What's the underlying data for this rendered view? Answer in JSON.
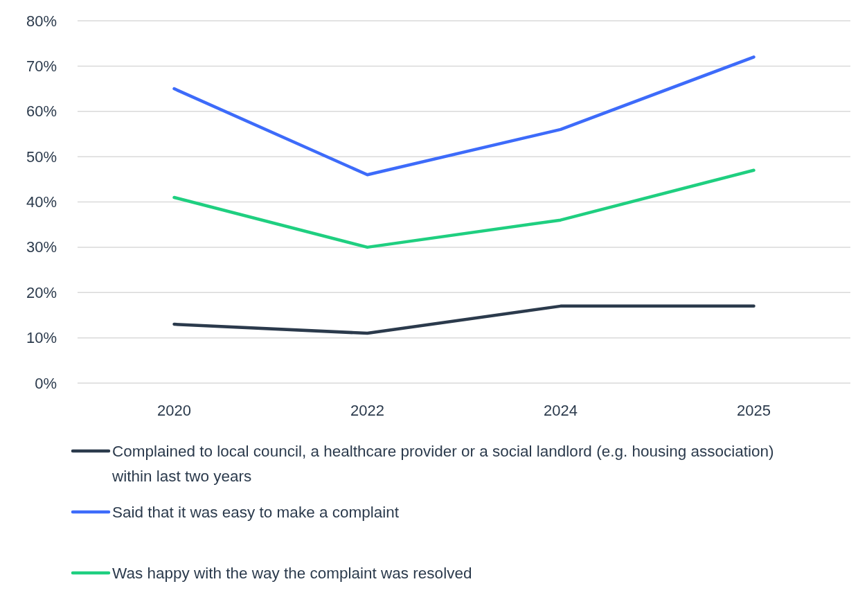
{
  "chart_data": {
    "type": "line",
    "categories": [
      "2020",
      "2022",
      "2024",
      "2025"
    ],
    "series": [
      {
        "name": "Complained to local council, a healthcare provider or a social landlord (e.g. housing association) within last two years",
        "color": "#2b3a4c",
        "values": [
          13,
          11,
          17,
          17
        ]
      },
      {
        "name": "Said that it was easy to make a complaint",
        "color": "#3d6bfa",
        "values": [
          65,
          46,
          56,
          72
        ]
      },
      {
        "name": "Was happy with the way the complaint was resolved",
        "color": "#1fcf80",
        "values": [
          41,
          30,
          36,
          47
        ]
      }
    ],
    "ylim": [
      0,
      80
    ],
    "yticks": [
      {
        "value": 0,
        "label": "0%"
      },
      {
        "value": 10,
        "label": "10%"
      },
      {
        "value": 20,
        "label": "20%"
      },
      {
        "value": 30,
        "label": "30%"
      },
      {
        "value": 40,
        "label": "40%"
      },
      {
        "value": 50,
        "label": "50%"
      },
      {
        "value": 60,
        "label": "60%"
      },
      {
        "value": 70,
        "label": "70%"
      },
      {
        "value": 80,
        "label": "80%"
      }
    ],
    "grid": "y",
    "legend": "bottom",
    "marker": "none",
    "line_style": "solid"
  }
}
